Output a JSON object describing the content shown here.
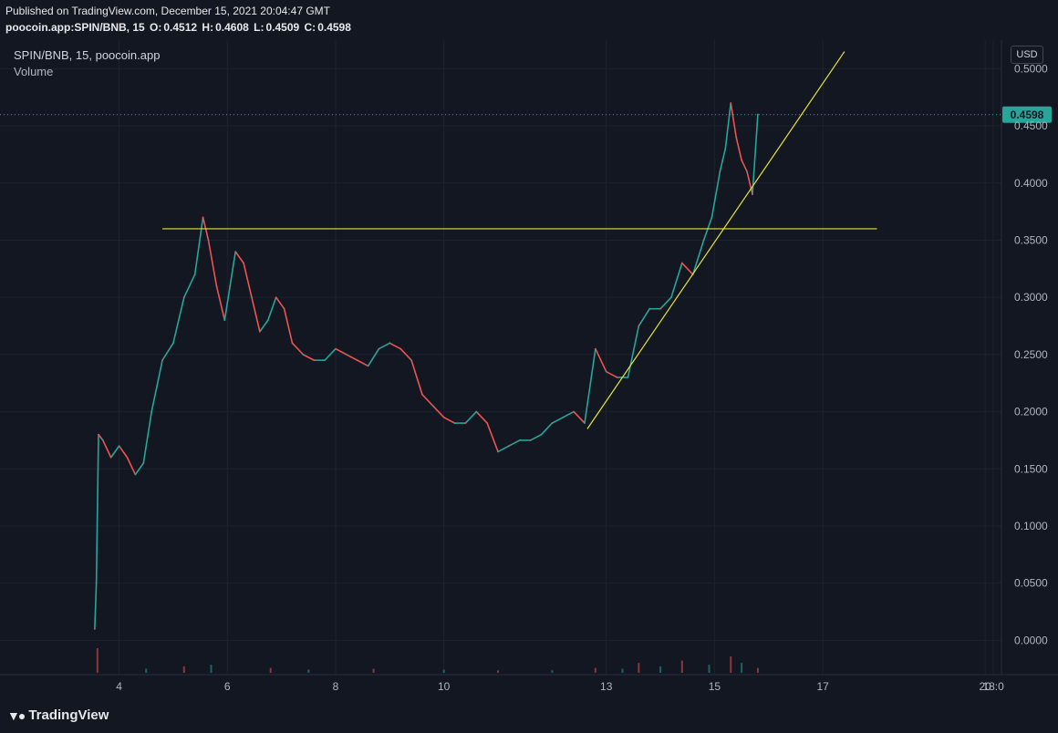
{
  "header": {
    "published": "Published on TradingView.com, December 15, 2021 20:04:47 GMT",
    "symbol_full": "poocoin.app:SPIN/BNB, 15",
    "o_label": "O:",
    "o_value": "0.4512",
    "h_label": "H:",
    "h_value": "0.4608",
    "l_label": "L:",
    "l_value": "0.4509",
    "c_label": "C:",
    "c_value": "0.4598"
  },
  "legend": {
    "title": "SPIN/BNB, 15, poocoin.app",
    "volume": "Volume"
  },
  "currency": "USD",
  "footer": {
    "brand": "TradingView"
  },
  "colors": {
    "background": "#131722",
    "up": "#26a69a",
    "down": "#ef5350",
    "drawing": "#e6e23a",
    "last_price": "#26a69a"
  },
  "chart_data": {
    "type": "line",
    "last_price": 0.4598,
    "last_price_label": "0.4598",
    "ylim": [
      -0.03,
      0.525
    ],
    "y_ticks": [
      {
        "value": 0.5,
        "label": "0.5000"
      },
      {
        "value": 0.45,
        "label": "0.4500"
      },
      {
        "value": 0.4,
        "label": "0.4000"
      },
      {
        "value": 0.35,
        "label": "0.3500"
      },
      {
        "value": 0.3,
        "label": "0.3000"
      },
      {
        "value": 0.25,
        "label": "0.2500"
      },
      {
        "value": 0.2,
        "label": "0.2000"
      },
      {
        "value": 0.15,
        "label": "0.1500"
      },
      {
        "value": 0.1,
        "label": "0.1000"
      },
      {
        "value": 0.05,
        "label": "0.0500"
      },
      {
        "value": 0.0,
        "label": "0.0000"
      }
    ],
    "xlim": [
      1.8,
      20.3
    ],
    "x_ticks": [
      {
        "value": 4,
        "label": "4"
      },
      {
        "value": 6,
        "label": "6"
      },
      {
        "value": 8,
        "label": "8"
      },
      {
        "value": 10,
        "label": "10"
      },
      {
        "value": 13,
        "label": "13"
      },
      {
        "value": 15,
        "label": "15"
      },
      {
        "value": 17,
        "label": "17"
      },
      {
        "value": 20,
        "label": "20"
      },
      {
        "value": 20.15,
        "label": "18:0"
      }
    ],
    "price_series": {
      "x": [
        3.55,
        3.58,
        3.62,
        3.7,
        3.85,
        4.0,
        4.15,
        4.3,
        4.45,
        4.6,
        4.8,
        5.0,
        5.2,
        5.4,
        5.55,
        5.65,
        5.8,
        5.95,
        6.05,
        6.15,
        6.3,
        6.45,
        6.6,
        6.75,
        6.9,
        7.05,
        7.2,
        7.4,
        7.6,
        7.8,
        8.0,
        8.2,
        8.4,
        8.6,
        8.8,
        9.0,
        9.2,
        9.4,
        9.6,
        9.8,
        10.0,
        10.2,
        10.4,
        10.6,
        10.8,
        11.0,
        11.2,
        11.4,
        11.6,
        11.8,
        12.0,
        12.2,
        12.4,
        12.6,
        12.8,
        13.0,
        13.2,
        13.4,
        13.6,
        13.8,
        14.0,
        14.2,
        14.4,
        14.6,
        14.8,
        14.95,
        15.1,
        15.2,
        15.3,
        15.4,
        15.5,
        15.6,
        15.7,
        15.8
      ],
      "y": [
        0.01,
        0.05,
        0.18,
        0.175,
        0.16,
        0.17,
        0.16,
        0.145,
        0.155,
        0.2,
        0.245,
        0.26,
        0.3,
        0.32,
        0.37,
        0.35,
        0.31,
        0.28,
        0.31,
        0.34,
        0.33,
        0.3,
        0.27,
        0.28,
        0.3,
        0.29,
        0.26,
        0.25,
        0.245,
        0.245,
        0.255,
        0.25,
        0.245,
        0.24,
        0.255,
        0.26,
        0.255,
        0.245,
        0.215,
        0.205,
        0.195,
        0.19,
        0.19,
        0.2,
        0.19,
        0.165,
        0.17,
        0.175,
        0.175,
        0.18,
        0.19,
        0.195,
        0.2,
        0.19,
        0.255,
        0.235,
        0.23,
        0.23,
        0.275,
        0.29,
        0.29,
        0.3,
        0.33,
        0.32,
        0.35,
        0.37,
        0.41,
        0.43,
        0.47,
        0.44,
        0.42,
        0.41,
        0.39,
        0.46
      ]
    },
    "volume_bars": {
      "x": [
        3.6,
        4.5,
        5.2,
        5.7,
        6.8,
        7.5,
        8.7,
        10.0,
        11.0,
        12.0,
        12.8,
        13.3,
        13.6,
        14.0,
        14.4,
        14.9,
        15.3,
        15.5,
        15.8
      ],
      "v": [
        0.3,
        0.05,
        0.08,
        0.1,
        0.06,
        0.04,
        0.05,
        0.04,
        0.03,
        0.03,
        0.06,
        0.05,
        0.12,
        0.08,
        0.15,
        0.1,
        0.2,
        0.12,
        0.06
      ]
    },
    "drawings": [
      {
        "type": "horizontal",
        "y": 0.36,
        "x1": 4.8,
        "x2": 18.0
      },
      {
        "type": "trend",
        "x1": 12.65,
        "y1": 0.185,
        "x2": 17.4,
        "y2": 0.515
      }
    ]
  }
}
